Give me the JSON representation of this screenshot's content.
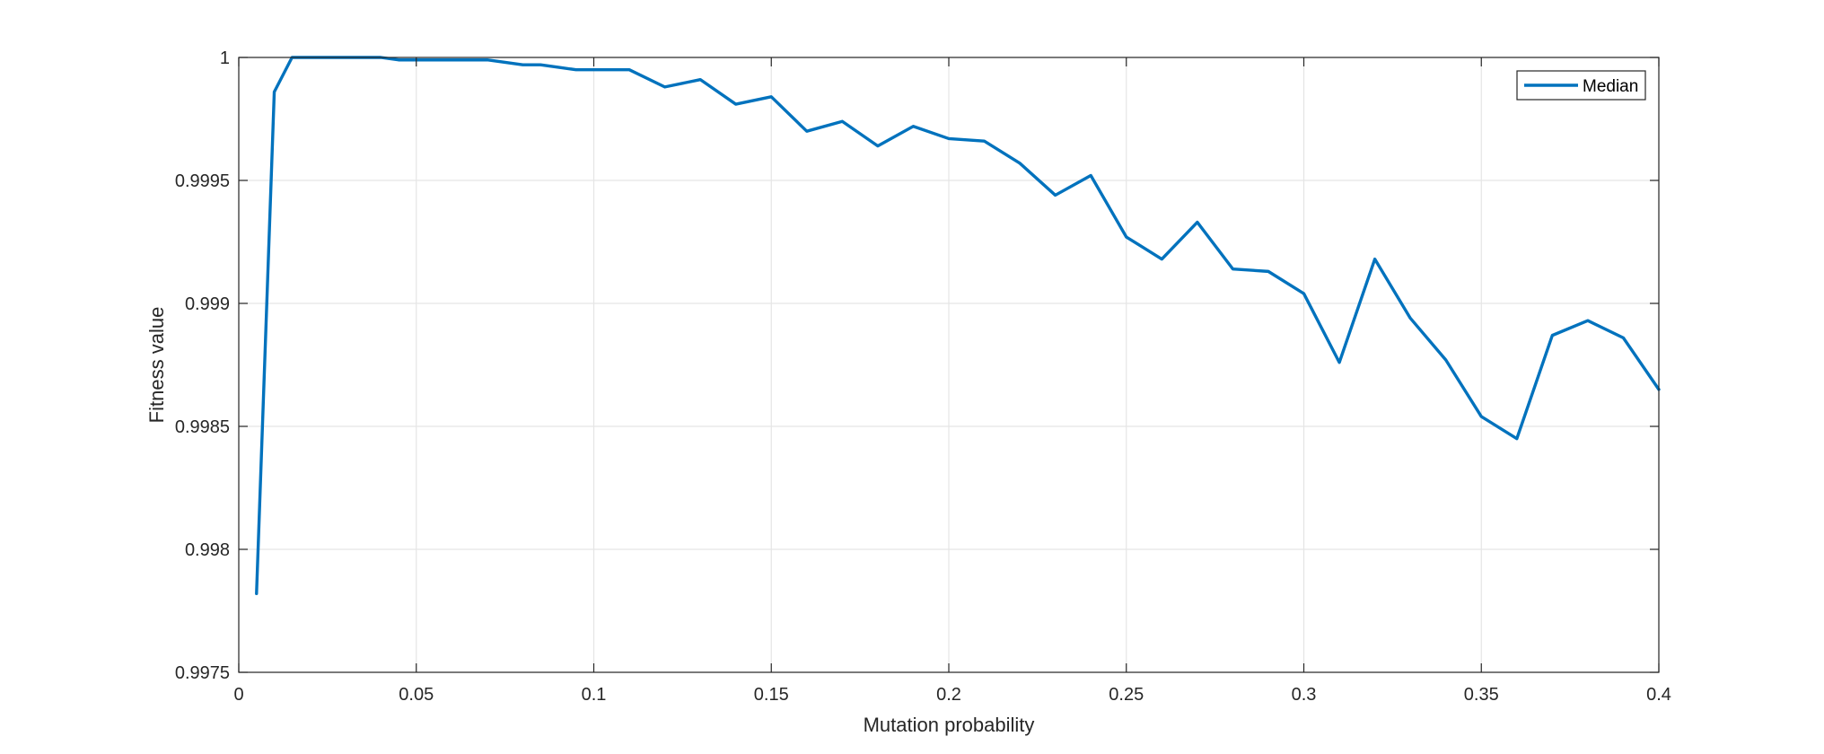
{
  "colors": {
    "series": "#0072BD",
    "axis": "#262626",
    "grid": "#e5e5e5"
  },
  "chart_data": {
    "type": "line",
    "title": "",
    "xlabel": "Mutation probability",
    "ylabel": "Fitness value",
    "xlim": [
      0,
      0.4
    ],
    "ylim": [
      0.9975,
      1
    ],
    "grid": true,
    "legend_placement": "top-right",
    "xticks": [
      0,
      0.05,
      0.1,
      0.15,
      0.2,
      0.25,
      0.3,
      0.35,
      0.4
    ],
    "xtick_labels": [
      "0",
      "0.05",
      "0.1",
      "0.15",
      "0.2",
      "0.25",
      "0.3",
      "0.35",
      "0.4"
    ],
    "yticks": [
      0.9975,
      0.998,
      0.9985,
      0.999,
      0.9995,
      1
    ],
    "ytick_labels": [
      "0.9975",
      "0.998",
      "0.9985",
      "0.999",
      "0.9995",
      "1"
    ],
    "series": [
      {
        "name": "Median",
        "color": "#0072BD",
        "x": [
          0.005,
          0.01,
          0.015,
          0.02,
          0.025,
          0.03,
          0.035,
          0.04,
          0.045,
          0.05,
          0.055,
          0.06,
          0.065,
          0.07,
          0.075,
          0.08,
          0.085,
          0.09,
          0.095,
          0.1,
          0.11,
          0.12,
          0.13,
          0.14,
          0.15,
          0.16,
          0.17,
          0.18,
          0.19,
          0.2,
          0.21,
          0.22,
          0.23,
          0.24,
          0.25,
          0.26,
          0.27,
          0.28,
          0.29,
          0.3,
          0.31,
          0.32,
          0.33,
          0.34,
          0.35,
          0.36,
          0.37,
          0.38,
          0.39,
          0.4
        ],
        "y": [
          0.99782,
          0.99986,
          1.0,
          1.0,
          1.0,
          1.0,
          1.0,
          1.0,
          0.99999,
          0.99999,
          0.99999,
          0.99999,
          0.99999,
          0.99999,
          0.99998,
          0.99997,
          0.99997,
          0.99996,
          0.99995,
          0.99995,
          0.99995,
          0.99988,
          0.99991,
          0.99981,
          0.99984,
          0.9997,
          0.99974,
          0.99964,
          0.99972,
          0.99967,
          0.99966,
          0.99957,
          0.99944,
          0.99952,
          0.99927,
          0.99918,
          0.99933,
          0.99914,
          0.99913,
          0.99904,
          0.99876,
          0.99918,
          0.99894,
          0.99877,
          0.99854,
          0.99845,
          0.99887,
          0.99893,
          0.99886,
          0.99865
        ]
      }
    ]
  }
}
